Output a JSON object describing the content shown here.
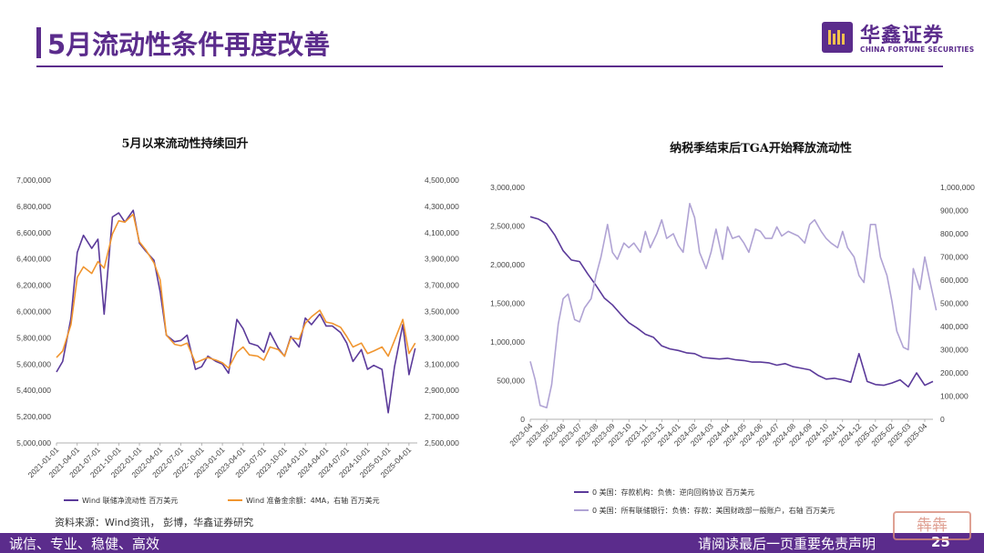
{
  "header": {
    "title": "5月流动性条件再度改善",
    "logo_cn": "华鑫证券",
    "logo_en": "CHINA FORTUNE SECURITIES"
  },
  "footer": {
    "left": "诚信、专业、稳健、高效",
    "right": "请阅读最后一页重要免责声明",
    "page": "25",
    "stamp": "犇犇"
  },
  "source": "资料来源：Wind资讯， 彭博，华鑫证券研究",
  "colors": {
    "brand": "#5b2c8c",
    "series_dark": "#5b3a9a",
    "series_orange": "#f0952f",
    "series_light": "#b0a3d4"
  },
  "chart_data": [
    {
      "type": "line",
      "title": "5月以来流动性持续回升",
      "left_axis": {
        "ylim": [
          5000000,
          7000000
        ],
        "ticks": [
          "7,000,000",
          "6,800,000",
          "6,600,000",
          "6,400,000",
          "6,200,000",
          "6,000,000",
          "5,800,000",
          "5,600,000",
          "5,400,000",
          "5,200,000",
          "5,000,000"
        ]
      },
      "right_axis": {
        "ylim": [
          2500000,
          4500000
        ],
        "ticks": [
          "4,500,000",
          "4,300,000",
          "4,100,000",
          "3,900,000",
          "3,700,000",
          "3,500,000",
          "3,300,000",
          "3,100,000",
          "2,900,000",
          "2,700,000",
          "2,500,000"
        ]
      },
      "x_ticks": [
        "2021-01-01",
        "2021-04-01",
        "2021-07-01",
        "2021-10-01",
        "2022-01-01",
        "2022-04-01",
        "2022-07-01",
        "2022-10-01",
        "2023-01-01",
        "2023-04-01",
        "2023-07-01",
        "2023-10-01",
        "2024-01-01",
        "2024-04-01",
        "2024-07-01",
        "2024-10-01",
        "2025-01-01",
        "2025-04-01"
      ],
      "series": [
        {
          "name": "Wind 联储净流动性 百万美元",
          "axis": "left",
          "color": "#5b3a9a",
          "x": [
            0,
            0.3,
            0.7,
            1,
            1.3,
            1.7,
            2,
            2.3,
            2.7,
            3,
            3.3,
            3.7,
            4,
            4.3,
            4.7,
            5,
            5.3,
            5.7,
            6,
            6.3,
            6.7,
            7,
            7.3,
            7.7,
            8,
            8.3,
            8.7,
            9,
            9.3,
            9.7,
            10,
            10.3,
            10.7,
            11,
            11.3,
            11.7,
            12,
            12.3,
            12.7,
            13,
            13.3,
            13.7,
            14,
            14.3,
            14.7,
            15,
            15.3,
            15.7,
            16,
            16.3,
            16.7,
            17,
            17.3
          ],
          "values": [
            5540000,
            5620000,
            5950000,
            6450000,
            6580000,
            6480000,
            6550000,
            5980000,
            6720000,
            6750000,
            6680000,
            6770000,
            6520000,
            6460000,
            6390000,
            6150000,
            5820000,
            5770000,
            5780000,
            5820000,
            5560000,
            5580000,
            5660000,
            5620000,
            5600000,
            5530000,
            5940000,
            5870000,
            5760000,
            5740000,
            5690000,
            5840000,
            5720000,
            5660000,
            5810000,
            5730000,
            5950000,
            5900000,
            5980000,
            5890000,
            5890000,
            5840000,
            5760000,
            5620000,
            5710000,
            5560000,
            5590000,
            5560000,
            5230000,
            5580000,
            5900000,
            5520000,
            5720000
          ]
        },
        {
          "name": "Wind 准备金余额：4MA，右轴 百万美元",
          "axis": "right",
          "color": "#f0952f",
          "x": [
            0,
            0.3,
            0.7,
            1,
            1.3,
            1.7,
            2,
            2.3,
            2.7,
            3,
            3.3,
            3.7,
            4,
            4.3,
            4.7,
            5,
            5.3,
            5.7,
            6,
            6.3,
            6.7,
            7,
            7.3,
            7.7,
            8,
            8.3,
            8.7,
            9,
            9.3,
            9.7,
            10,
            10.3,
            10.7,
            11,
            11.3,
            11.7,
            12,
            12.3,
            12.7,
            13,
            13.3,
            13.7,
            14,
            14.3,
            14.7,
            15,
            15.3,
            15.7,
            16,
            16.3,
            16.7,
            17,
            17.3
          ],
          "values": [
            3150000,
            3200000,
            3400000,
            3760000,
            3840000,
            3790000,
            3880000,
            3830000,
            4090000,
            4190000,
            4180000,
            4240000,
            4030000,
            3970000,
            3870000,
            3740000,
            3320000,
            3250000,
            3240000,
            3260000,
            3110000,
            3130000,
            3150000,
            3130000,
            3110000,
            3070000,
            3190000,
            3230000,
            3170000,
            3160000,
            3130000,
            3230000,
            3210000,
            3160000,
            3300000,
            3290000,
            3410000,
            3460000,
            3510000,
            3420000,
            3410000,
            3380000,
            3310000,
            3230000,
            3260000,
            3180000,
            3200000,
            3230000,
            3160000,
            3280000,
            3440000,
            3180000,
            3260000
          ]
        }
      ],
      "legend": "bottom"
    },
    {
      "type": "line",
      "title": "纳税季结束后TGA开始释放流动性",
      "left_axis": {
        "ylim": [
          0,
          3000000
        ],
        "ticks": [
          "3,000,000",
          "2,500,000",
          "2,000,000",
          "1,500,000",
          "1,000,000",
          "500,000",
          "0"
        ]
      },
      "right_axis": {
        "ylim": [
          0,
          1000000
        ],
        "ticks": [
          "1,000,000",
          "900,000",
          "800,000",
          "700,000",
          "600,000",
          "500,000",
          "400,000",
          "300,000",
          "200,000",
          "100,000",
          "0"
        ]
      },
      "x_ticks": [
        "2023-04",
        "2023-05",
        "2023-06",
        "2023-07",
        "2023-08",
        "2023-09",
        "2023-10",
        "2023-11",
        "2023-12",
        "2024-01",
        "2024-02",
        "2024-03",
        "2024-04",
        "2024-05",
        "2024-06",
        "2024-07",
        "2024-08",
        "2024-09",
        "2024-10",
        "2024-11",
        "2024-12",
        "2025-01",
        "2025-02",
        "2025-03",
        "2025-04"
      ],
      "series": [
        {
          "name": "0 美国：存款机构：负债：逆向回购协议 百万美元",
          "axis": "left",
          "color": "#5b3a9a",
          "x": [
            0,
            0.5,
            1,
            1.5,
            2,
            2.5,
            3,
            3.5,
            4,
            4.5,
            5,
            5.5,
            6,
            6.5,
            7,
            7.5,
            8,
            8.5,
            9,
            9.5,
            10,
            10.5,
            11,
            11.5,
            12,
            12.5,
            13,
            13.5,
            14,
            14.5,
            15,
            15.5,
            16,
            16.5,
            17,
            17.5,
            18,
            18.5,
            19,
            19.5,
            20,
            20.5,
            21,
            21.5,
            22,
            22.5,
            23,
            23.5,
            24,
            24.5
          ],
          "values": [
            2620000,
            2590000,
            2530000,
            2380000,
            2180000,
            2060000,
            2040000,
            1880000,
            1730000,
            1570000,
            1480000,
            1360000,
            1250000,
            1180000,
            1100000,
            1060000,
            950000,
            910000,
            890000,
            860000,
            850000,
            800000,
            790000,
            780000,
            790000,
            770000,
            760000,
            740000,
            740000,
            730000,
            700000,
            720000,
            680000,
            660000,
            640000,
            570000,
            520000,
            530000,
            510000,
            480000,
            850000,
            490000,
            450000,
            440000,
            470000,
            510000,
            420000,
            600000,
            440000,
            490000
          ]
        },
        {
          "name": "0 美国：所有联储银行：负债：存款：美国财政部一般账户，右轴 百万美元",
          "axis": "right",
          "color": "#b0a3d4",
          "x": [
            0,
            0.3,
            0.6,
            1,
            1.3,
            1.7,
            2,
            2.3,
            2.7,
            3,
            3.3,
            3.7,
            4,
            4.3,
            4.7,
            5,
            5.3,
            5.7,
            6,
            6.3,
            6.7,
            7,
            7.3,
            7.7,
            8,
            8.3,
            8.7,
            9,
            9.3,
            9.7,
            10,
            10.3,
            10.7,
            11,
            11.3,
            11.7,
            12,
            12.3,
            12.7,
            13,
            13.3,
            13.7,
            14,
            14.3,
            14.7,
            15,
            15.3,
            15.7,
            16,
            16.3,
            16.7,
            17,
            17.3,
            17.7,
            18,
            18.3,
            18.7,
            19,
            19.3,
            19.7,
            20,
            20.3,
            20.7,
            21,
            21.3,
            21.7,
            22,
            22.3,
            22.7,
            23,
            23.3,
            23.7,
            24,
            24.3,
            24.7
          ],
          "values": [
            250000,
            170000,
            60000,
            50000,
            150000,
            410000,
            520000,
            540000,
            430000,
            420000,
            480000,
            520000,
            620000,
            700000,
            840000,
            720000,
            690000,
            760000,
            740000,
            760000,
            720000,
            810000,
            740000,
            800000,
            860000,
            780000,
            800000,
            750000,
            720000,
            930000,
            870000,
            720000,
            650000,
            720000,
            820000,
            690000,
            830000,
            780000,
            790000,
            760000,
            720000,
            820000,
            810000,
            780000,
            780000,
            830000,
            790000,
            810000,
            800000,
            790000,
            760000,
            840000,
            860000,
            810000,
            780000,
            760000,
            740000,
            810000,
            740000,
            700000,
            620000,
            590000,
            840000,
            840000,
            700000,
            620000,
            510000,
            380000,
            310000,
            300000,
            650000,
            560000,
            700000,
            600000,
            470000
          ]
        }
      ],
      "legend": "bottom"
    }
  ]
}
